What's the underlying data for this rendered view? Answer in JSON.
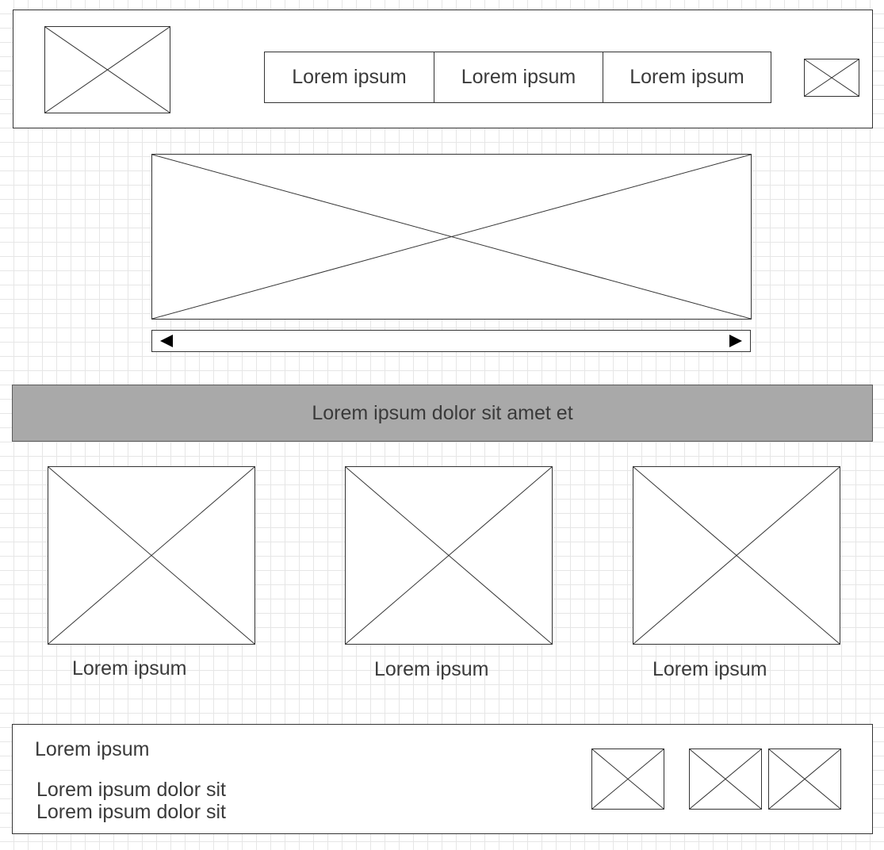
{
  "header": {
    "nav_items": [
      {
        "label": "Lorem ipsum"
      },
      {
        "label": "Lorem ipsum"
      },
      {
        "label": "Lorem ipsum"
      }
    ]
  },
  "hero": {
    "slider": {
      "prev_icon": "triangle-left-icon",
      "next_icon": "triangle-right-icon"
    }
  },
  "banner": {
    "text": "Lorem ipsum dolor sit amet et"
  },
  "cards": [
    {
      "caption": "Lorem ipsum"
    },
    {
      "caption": "Lorem ipsum"
    },
    {
      "caption": "Lorem ipsum"
    }
  ],
  "footer": {
    "title": "Lorem ipsum",
    "lines": [
      "Lorem ipsum dolor sit",
      "Lorem ipsum dolor sit"
    ]
  },
  "colors": {
    "grid": "#e6e6e6",
    "stroke": "#333333",
    "banner_bg": "#a9a9a9",
    "text": "#3a3a3a"
  }
}
